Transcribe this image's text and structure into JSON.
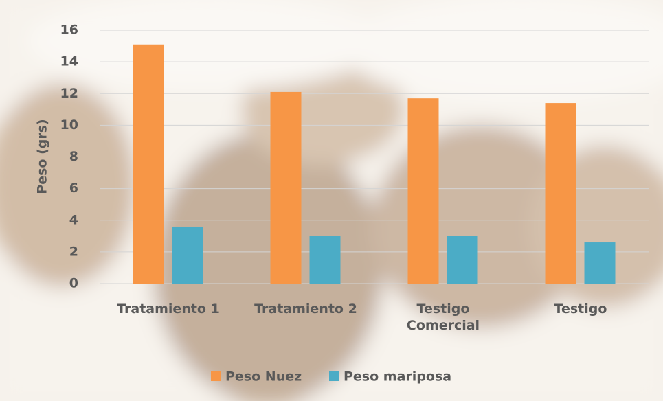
{
  "chart_data": {
    "type": "bar",
    "y_label": "Peso (grs)",
    "categories": [
      "Tratamiento 1",
      "Tratamiento 2",
      "Testigo Comercial",
      "Testigo"
    ],
    "series": [
      {
        "name": "Peso Nuez",
        "color": "#f79646",
        "values": [
          15.1,
          12.1,
          11.7,
          11.4
        ]
      },
      {
        "name": "Peso mariposa",
        "color": "#4bacc6",
        "values": [
          3.6,
          3.0,
          3.0,
          2.6
        ]
      }
    ],
    "ylim": [
      0,
      16
    ],
    "yticks": [
      0,
      2,
      4,
      6,
      8,
      10,
      12,
      14,
      16
    ],
    "grid": true,
    "legend": "bottom"
  }
}
